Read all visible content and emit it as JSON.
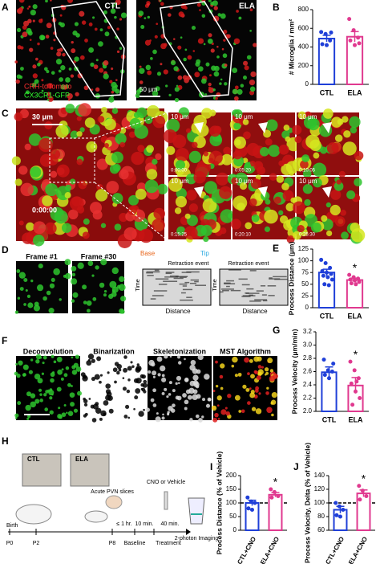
{
  "panel_letters": [
    "A",
    "B",
    "C",
    "D",
    "E",
    "F",
    "G",
    "H",
    "I",
    "J"
  ],
  "panel_a": {
    "ctl": "CTL",
    "ela": "ELA",
    "stain1": "CRH-tdTomato",
    "stain2": "CX3CR1-GFP",
    "scale": "50 μm"
  },
  "panel_c": {
    "scale": "30 μm",
    "main_time": "0:00:00",
    "scale_small": "10 μm",
    "times": [
      "0:00:00",
      "0:05:20",
      "0:10:05",
      "0:15:25",
      "0:20:10",
      "0:25:30"
    ]
  },
  "panel_d": {
    "frames": [
      "Frame #1",
      "Frame #30"
    ],
    "base": "Base",
    "tip": "Tip",
    "event": "Retraction event",
    "time": "Time",
    "distance": "Distance"
  },
  "panel_f": [
    "Deconvolution",
    "Binarization",
    "Skeletonization",
    "MST Algorithm"
  ],
  "panel_h": {
    "cages": [
      "CTL",
      "ELA"
    ],
    "slices": "Acute PVN slices",
    "drug": "CNO or Vehicle",
    "lag": "≤ 1 hr.",
    "baseline": "Baseline",
    "treatment": "Treatment",
    "min10": "10 min.",
    "min40": "40 min.",
    "imaging": "2-photon Imaging",
    "birth": "Birth",
    "days": [
      "P0",
      "P2",
      "P8"
    ]
  },
  "chart_data": [
    {
      "type": "bar",
      "ylabel": "# Microglia / mm²",
      "categories": [
        "CTL",
        "ELA"
      ],
      "colors": [
        "#1f3fd8",
        "#e0398f"
      ],
      "values": [
        490,
        510
      ],
      "errors": [
        35,
        55
      ],
      "points": [
        [
          560,
          540,
          470,
          430,
          420,
          555
        ],
        [
          700,
          580,
          500,
          470,
          420,
          440
        ]
      ],
      "ylim": [
        0,
        800
      ],
      "yticks": [
        0,
        200,
        400,
        600,
        800
      ]
    },
    {
      "type": "bar",
      "ylabel": "Process Distance (μm)",
      "categories": [
        "CTL",
        "ELA"
      ],
      "colors": [
        "#1f3fd8",
        "#e0398f"
      ],
      "values": [
        75,
        59
      ],
      "errors": [
        7,
        4
      ],
      "points": [
        [
          102,
          95,
          85,
          78,
          75,
          72,
          68,
          65,
          60,
          50,
          48
        ],
        [
          70,
          65,
          62,
          60,
          58,
          55,
          52,
          50
        ]
      ],
      "annotations": [
        {
          "text": "*",
          "x": "ELA"
        }
      ],
      "ylim": [
        0,
        125
      ],
      "yticks": [
        0,
        25,
        50,
        75,
        100,
        125
      ]
    },
    {
      "type": "bar",
      "ylabel": "Process Velocity (μm/min)",
      "categories": [
        "CTL",
        "ELA"
      ],
      "colors": [
        "#1f3fd8",
        "#e0398f"
      ],
      "values": [
        2.59,
        2.39
      ],
      "errors": [
        0.08,
        0.12
      ],
      "points": [
        [
          2.78,
          2.62,
          2.6,
          2.55,
          2.5,
          2.72
        ],
        [
          2.75,
          2.62,
          2.5,
          2.42,
          2.3,
          2.2,
          2.1,
          2.45
        ]
      ],
      "annotations": [
        {
          "text": "*",
          "x": "ELA"
        }
      ],
      "ylim": [
        2,
        3.2
      ],
      "yticks": [
        {
          "value": 2,
          "label": "2.0"
        },
        {
          "value": 2.2,
          "label": "2.2"
        },
        {
          "value": 2.4,
          "label": "2.4"
        },
        {
          "value": 2.6,
          "label": "2.6"
        },
        {
          "value": 2.8,
          "label": "2.8"
        },
        {
          "value": 3,
          "label": "3.0"
        },
        {
          "value": 3.2,
          "label": "3.2"
        }
      ]
    },
    {
      "type": "bar",
      "ylabel": "Process Distance (% of Vehicle)",
      "categories": [
        "CTL+CNO",
        "ELA+CNO"
      ],
      "colors": [
        "#1f3fd8",
        "#e0398f"
      ],
      "values": [
        100,
        130
      ],
      "errors": [
        10,
        8
      ],
      "points": [
        [
          120,
          105,
          100,
          80,
          75
        ],
        [
          150,
          140,
          125,
          120
        ]
      ],
      "annotations": [
        {
          "text": "*",
          "x": "ELA+CNO"
        }
      ],
      "reference_line": 100,
      "ylim": [
        0,
        200
      ],
      "yticks": [
        0,
        50,
        100,
        150,
        200
      ]
    },
    {
      "type": "bar",
      "ylabel": "Process Velocity, Delta (% of Vehicle)",
      "categories": [
        "CTL+CNO",
        "ELA+CNO"
      ],
      "colors": [
        "#1f3fd8",
        "#e0398f"
      ],
      "values": [
        90,
        114
      ],
      "errors": [
        5,
        5
      ],
      "points": [
        [
          100,
          95,
          90,
          82,
          80
        ],
        [
          125,
          118,
          110,
          105
        ]
      ],
      "annotations": [
        {
          "text": "*",
          "x": "ELA+CNO"
        }
      ],
      "reference_line": 100,
      "ylim": [
        60,
        140
      ],
      "yticks": [
        60,
        80,
        100,
        120,
        140
      ]
    }
  ]
}
